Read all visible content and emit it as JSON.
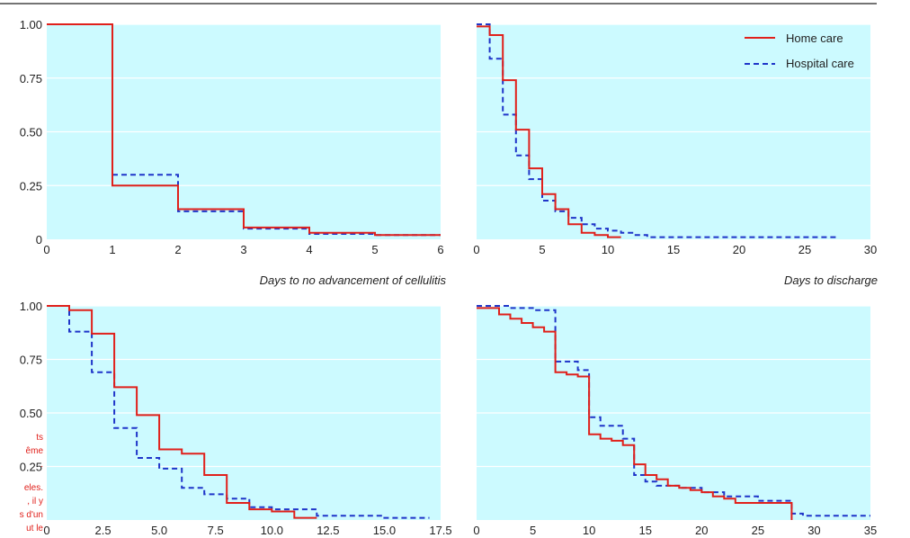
{
  "colors": {
    "panel_bg": "#ccfaff",
    "home": "#e0201b",
    "hospital": "#1f35c9",
    "rule": "#222222"
  },
  "legend": {
    "home_label": "Home care",
    "hospital_label": "Hospital care"
  },
  "side_note": [
    "ts",
    "ême",
    ".",
    "eles.",
    ", il y",
    "s d'un",
    "ut le"
  ],
  "chart_data": [
    {
      "type": "line",
      "step": true,
      "xlabel": "Days to no advancement of cellulitis",
      "ylabel": "",
      "xlim": [
        0,
        6
      ],
      "ylim": [
        0,
        1
      ],
      "xticks": [
        "0",
        "1",
        "2",
        "3",
        "4",
        "5",
        "6"
      ],
      "xtick_values": [
        0,
        1,
        2,
        3,
        4,
        5,
        6
      ],
      "yticks": [
        "0",
        "0.25",
        "0.50",
        "0.75",
        "1.00"
      ],
      "ytick_values": [
        0,
        0.25,
        0.5,
        0.75,
        1
      ],
      "series": [
        {
          "name": "Home care",
          "x": [
            0,
            1,
            2,
            3,
            4,
            5,
            6
          ],
          "y": [
            1.0,
            0.25,
            0.14,
            0.055,
            0.03,
            0.02,
            0.02
          ]
        },
        {
          "name": "Hospital care",
          "x": [
            1,
            2,
            3,
            4,
            5,
            6
          ],
          "y": [
            0.3,
            0.13,
            0.05,
            0.025,
            0.02,
            0.02
          ]
        }
      ]
    },
    {
      "type": "line",
      "step": true,
      "xlabel": "Days to discharge",
      "ylabel": "",
      "xlim": [
        0,
        30
      ],
      "ylim": [
        0,
        1
      ],
      "xticks": [
        "0",
        "5",
        "10",
        "15",
        "20",
        "25",
        "30"
      ],
      "xtick_values": [
        0,
        5,
        10,
        15,
        20,
        25,
        30
      ],
      "yticks": [],
      "ytick_values": [],
      "legend_position": "top-right",
      "series": [
        {
          "name": "Home care",
          "x": [
            0,
            1,
            2,
            3,
            4,
            5,
            6,
            7,
            8,
            9,
            10,
            11
          ],
          "y": [
            0.99,
            0.95,
            0.74,
            0.51,
            0.33,
            0.21,
            0.14,
            0.07,
            0.03,
            0.02,
            0.01,
            0.01
          ]
        },
        {
          "name": "Hospital care",
          "x": [
            0,
            1,
            2,
            3,
            4,
            5,
            6,
            7,
            8,
            9,
            10,
            11,
            12,
            13,
            15,
            20,
            25,
            27.5
          ],
          "y": [
            1.0,
            0.84,
            0.58,
            0.39,
            0.28,
            0.18,
            0.13,
            0.1,
            0.07,
            0.05,
            0.04,
            0.03,
            0.02,
            0.01,
            0.01,
            0.01,
            0.01,
            0.01
          ]
        }
      ]
    },
    {
      "type": "line",
      "step": true,
      "xlabel": "",
      "ylabel": "",
      "xlim": [
        0,
        17.5
      ],
      "ylim": [
        0,
        1
      ],
      "xticks": [
        "0",
        "2.5",
        "5.0",
        "7.5",
        "10.0",
        "12.5",
        "15.0",
        "17.5"
      ],
      "xtick_values": [
        0,
        2.5,
        5,
        7.5,
        10,
        12.5,
        15,
        17.5
      ],
      "yticks": [
        "0.25",
        "0.50",
        "0.75",
        "1.00"
      ],
      "ytick_values": [
        0.25,
        0.5,
        0.75,
        1
      ],
      "series": [
        {
          "name": "Home care",
          "x": [
            0,
            1,
            2,
            3,
            4,
            5,
            6,
            7,
            8,
            9,
            10,
            11,
            12
          ],
          "y": [
            1.0,
            0.98,
            0.87,
            0.62,
            0.49,
            0.33,
            0.31,
            0.21,
            0.08,
            0.05,
            0.04,
            0.01,
            0.01
          ]
        },
        {
          "name": "Hospital care",
          "x": [
            0,
            1,
            2,
            3,
            4,
            5,
            6,
            7,
            8,
            9,
            10,
            12,
            15,
            17
          ],
          "y": [
            1.0,
            0.88,
            0.69,
            0.43,
            0.29,
            0.24,
            0.15,
            0.12,
            0.1,
            0.06,
            0.05,
            0.02,
            0.01,
            0.01
          ]
        }
      ]
    },
    {
      "type": "line",
      "step": true,
      "xlabel": "",
      "ylabel": "",
      "xlim": [
        0,
        35
      ],
      "ylim": [
        0,
        1
      ],
      "xticks": [
        "0",
        "5",
        "10",
        "15",
        "20",
        "25",
        "30",
        "35"
      ],
      "xtick_values": [
        0,
        5,
        10,
        15,
        20,
        25,
        30,
        35
      ],
      "yticks": [],
      "ytick_values": [],
      "series": [
        {
          "name": "Home care",
          "x": [
            0,
            2,
            3,
            4,
            5,
            6,
            7,
            8,
            9,
            10,
            11,
            12,
            13,
            14,
            15,
            16,
            17,
            18,
            19,
            20,
            21,
            22,
            23,
            25,
            26,
            28
          ],
          "y": [
            0.99,
            0.96,
            0.94,
            0.92,
            0.9,
            0.88,
            0.69,
            0.68,
            0.67,
            0.4,
            0.38,
            0.37,
            0.35,
            0.26,
            0.21,
            0.19,
            0.16,
            0.15,
            0.14,
            0.13,
            0.11,
            0.1,
            0.08,
            0.08,
            0.08,
            0.0
          ]
        },
        {
          "name": "Hospital care",
          "x": [
            0,
            2,
            3,
            5,
            7,
            9,
            10,
            11,
            13,
            14,
            15,
            16,
            18,
            20,
            22,
            25,
            28,
            29,
            35
          ],
          "y": [
            1.0,
            1.0,
            0.99,
            0.98,
            0.74,
            0.7,
            0.48,
            0.44,
            0.38,
            0.21,
            0.18,
            0.16,
            0.15,
            0.13,
            0.11,
            0.09,
            0.03,
            0.02,
            0.02
          ]
        }
      ]
    }
  ]
}
